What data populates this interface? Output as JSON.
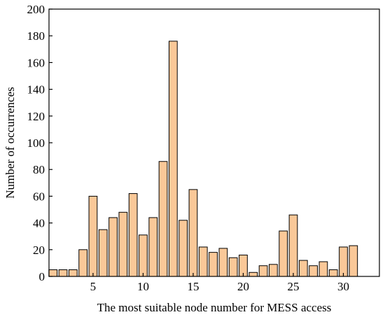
{
  "chart_data": {
    "type": "bar",
    "xlabel": "The most suitable node number for MESS access",
    "ylabel": "Number of occurrences",
    "categories": [
      1,
      2,
      3,
      4,
      5,
      6,
      7,
      8,
      9,
      10,
      11,
      12,
      13,
      14,
      15,
      16,
      17,
      18,
      19,
      20,
      21,
      22,
      23,
      24,
      25,
      26,
      27,
      28,
      29,
      30,
      31
    ],
    "values": [
      5,
      5,
      5,
      20,
      60,
      35,
      44,
      48,
      62,
      31,
      44,
      86,
      176,
      42,
      65,
      22,
      18,
      21,
      14,
      16,
      3,
      8,
      9,
      34,
      46,
      12,
      8,
      11,
      5,
      22,
      23
    ],
    "ylim": [
      0,
      200
    ],
    "yticks": [
      0,
      20,
      40,
      60,
      80,
      100,
      120,
      140,
      160,
      180,
      200
    ],
    "xlim": [
      0.6,
      33.6
    ],
    "xticks": [
      5,
      10,
      15,
      20,
      25,
      30
    ],
    "bar_color": "#fac898",
    "grid": false,
    "legend": "none"
  }
}
